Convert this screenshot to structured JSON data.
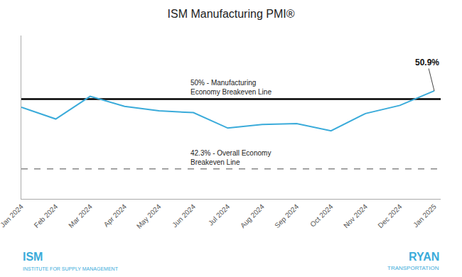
{
  "chart_data": {
    "type": "line",
    "title": "ISM Manufacturing PMI®",
    "categories": [
      "Jan 2024",
      "Feb 2024",
      "Mar 2024",
      "Apr 2024",
      "May 2024",
      "Jun 2024",
      "Jul 2024",
      "Aug 2024",
      "Sep 2024",
      "Oct 2024",
      "Nov 2024",
      "Dec 2024",
      "Jan 2025"
    ],
    "values": [
      49.1,
      47.8,
      50.3,
      49.2,
      48.7,
      48.5,
      46.8,
      47.2,
      47.3,
      46.5,
      48.4,
      49.3,
      50.9
    ],
    "color": "#3aabda",
    "ylim": [
      39,
      57
    ],
    "tick_labels": "x",
    "grid": false,
    "reference_lines": [
      {
        "value": 50.0,
        "label": [
          "50% - Manufacturing",
          "Economy Breakeven Line"
        ],
        "color": "#000000",
        "line_style": "solid"
      },
      {
        "value": 42.3,
        "label": [
          "42.3% - Overall Economy",
          "Breakeven Line"
        ],
        "color": "#888888",
        "line_style": "dashed"
      }
    ],
    "annotations": [
      {
        "text": "50.9%",
        "category": "Jan 2025",
        "value": 50.9
      }
    ],
    "logos": [
      {
        "texts": [
          "ISM",
          "INSTITUTE FOR SUPPLY MANAGEMENT"
        ],
        "color": "#3aabda"
      },
      {
        "texts": [
          "RYAN",
          "TRANSPORTATION"
        ],
        "color": "#3aabda"
      }
    ]
  }
}
